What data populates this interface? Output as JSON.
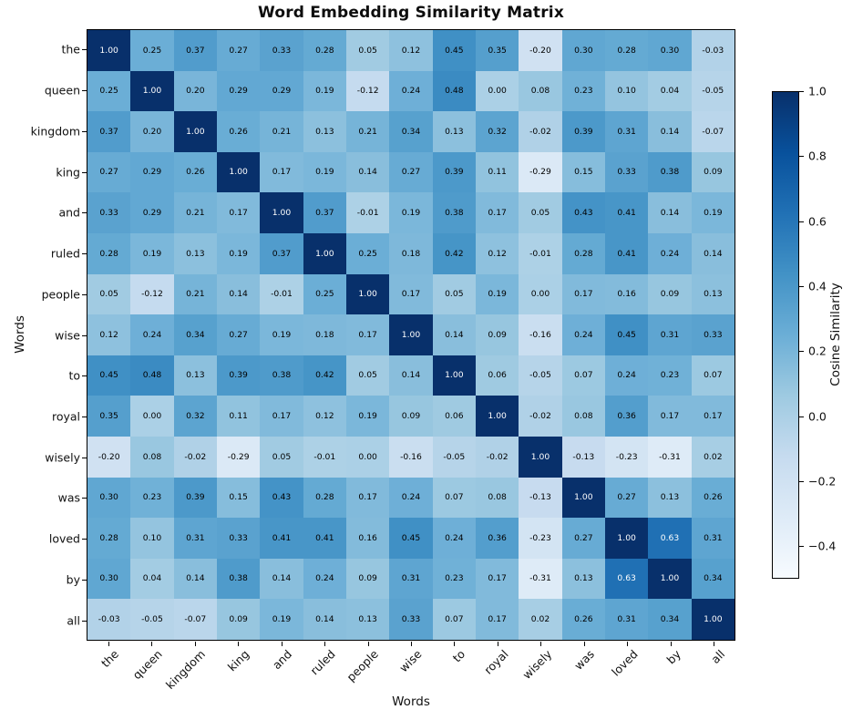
{
  "chart_data": {
    "type": "heatmap",
    "title": "Word Embedding Similarity Matrix",
    "xlabel": "Words",
    "ylabel": "Words",
    "categories": [
      "the",
      "queen",
      "kingdom",
      "king",
      "and",
      "ruled",
      "people",
      "wise",
      "to",
      "royal",
      "wisely",
      "was",
      "loved",
      "by",
      "all"
    ],
    "matrix": [
      [
        1.0,
        0.25,
        0.37,
        0.27,
        0.33,
        0.28,
        0.05,
        0.12,
        0.45,
        0.35,
        -0.2,
        0.3,
        0.28,
        0.3,
        -0.03
      ],
      [
        0.25,
        1.0,
        0.2,
        0.29,
        0.29,
        0.19,
        -0.12,
        0.24,
        0.48,
        0.0,
        0.08,
        0.23,
        0.1,
        0.04,
        -0.05
      ],
      [
        0.37,
        0.2,
        1.0,
        0.26,
        0.21,
        0.13,
        0.21,
        0.34,
        0.13,
        0.32,
        -0.02,
        0.39,
        0.31,
        0.14,
        -0.07
      ],
      [
        0.27,
        0.29,
        0.26,
        1.0,
        0.17,
        0.19,
        0.14,
        0.27,
        0.39,
        0.11,
        -0.29,
        0.15,
        0.33,
        0.38,
        0.09
      ],
      [
        0.33,
        0.29,
        0.21,
        0.17,
        1.0,
        0.37,
        -0.01,
        0.19,
        0.38,
        0.17,
        0.05,
        0.43,
        0.41,
        0.14,
        0.19
      ],
      [
        0.28,
        0.19,
        0.13,
        0.19,
        0.37,
        1.0,
        0.25,
        0.18,
        0.42,
        0.12,
        -0.01,
        0.28,
        0.41,
        0.24,
        0.14
      ],
      [
        0.05,
        -0.12,
        0.21,
        0.14,
        -0.01,
        0.25,
        1.0,
        0.17,
        0.05,
        0.19,
        0.0,
        0.17,
        0.16,
        0.09,
        0.13
      ],
      [
        0.12,
        0.24,
        0.34,
        0.27,
        0.19,
        0.18,
        0.17,
        1.0,
        0.14,
        0.09,
        -0.16,
        0.24,
        0.45,
        0.31,
        0.33
      ],
      [
        0.45,
        0.48,
        0.13,
        0.39,
        0.38,
        0.42,
        0.05,
        0.14,
        1.0,
        0.06,
        -0.05,
        0.07,
        0.24,
        0.23,
        0.07
      ],
      [
        0.35,
        0.0,
        0.32,
        0.11,
        0.17,
        0.12,
        0.19,
        0.09,
        0.06,
        1.0,
        -0.02,
        0.08,
        0.36,
        0.17,
        0.17
      ],
      [
        -0.2,
        0.08,
        -0.02,
        -0.29,
        0.05,
        -0.01,
        0.0,
        -0.16,
        -0.05,
        -0.02,
        1.0,
        -0.13,
        -0.23,
        -0.31,
        0.02
      ],
      [
        0.3,
        0.23,
        0.39,
        0.15,
        0.43,
        0.28,
        0.17,
        0.24,
        0.07,
        0.08,
        -0.13,
        1.0,
        0.27,
        0.13,
        0.26
      ],
      [
        0.28,
        0.1,
        0.31,
        0.33,
        0.41,
        0.41,
        0.16,
        0.45,
        0.24,
        0.36,
        -0.23,
        0.27,
        1.0,
        0.63,
        0.31
      ],
      [
        0.3,
        0.04,
        0.14,
        0.38,
        0.14,
        0.24,
        0.09,
        0.31,
        0.23,
        0.17,
        -0.31,
        0.13,
        0.63,
        1.0,
        0.34
      ],
      [
        -0.03,
        -0.05,
        -0.07,
        0.09,
        0.19,
        0.14,
        0.13,
        0.33,
        0.07,
        0.17,
        0.02,
        0.26,
        0.31,
        0.34,
        1.0
      ]
    ],
    "colormap": "Blues",
    "color_scale": {
      "vmin": -0.5,
      "vmax": 1.0
    },
    "cell_text": {
      "dark_color": "#000000",
      "light_color": "#ffffff",
      "light_text_threshold": 0.5
    },
    "colorbar": {
      "label": "Cosine Similarity",
      "tick_labels": [
        "1.0",
        "0.8",
        "0.6",
        "0.4",
        "0.2",
        "0.0",
        "−0.2",
        "−0.4"
      ],
      "tick_values": [
        1.0,
        0.8,
        0.6,
        0.4,
        0.2,
        0.0,
        -0.2,
        -0.4
      ],
      "position": "right"
    },
    "grid": false
  }
}
